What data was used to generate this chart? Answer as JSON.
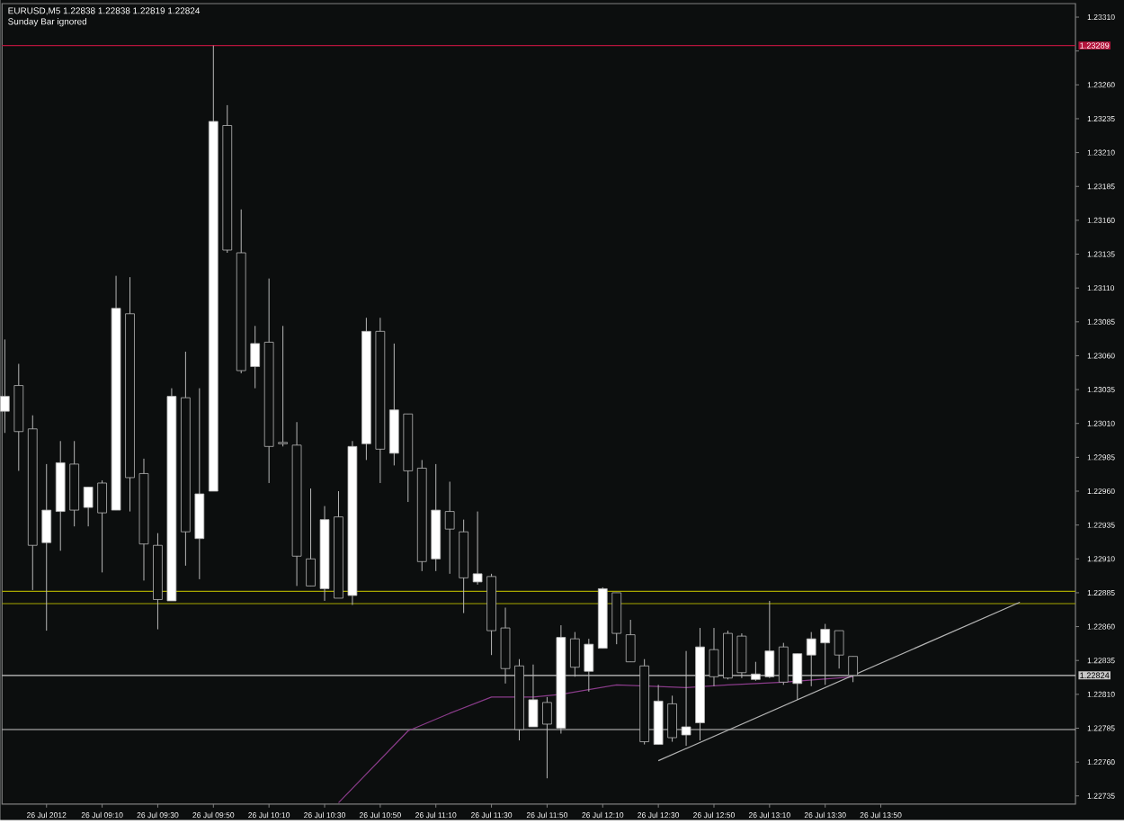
{
  "chart_data": {
    "type": "candlestick",
    "title": "EURUSD,M5 1.22838 1.22838 1.22819 1.22824",
    "subtitle": "Sunday Bar ignored",
    "x": [
      "2012-07-26T08:35",
      "2012-07-26T08:40",
      "2012-07-26T08:45",
      "2012-07-26T08:50",
      "2012-07-26T08:55",
      "2012-07-26T09:00",
      "2012-07-26T09:05",
      "2012-07-26T09:10",
      "2012-07-26T09:15",
      "2012-07-26T09:20",
      "2012-07-26T09:25",
      "2012-07-26T09:30",
      "2012-07-26T09:35",
      "2012-07-26T09:40",
      "2012-07-26T09:45",
      "2012-07-26T09:50",
      "2012-07-26T09:55",
      "2012-07-26T10:00",
      "2012-07-26T10:05",
      "2012-07-26T10:10",
      "2012-07-26T10:15",
      "2012-07-26T10:20",
      "2012-07-26T10:25",
      "2012-07-26T10:30",
      "2012-07-26T10:35",
      "2012-07-26T10:40",
      "2012-07-26T10:45",
      "2012-07-26T10:50",
      "2012-07-26T10:55",
      "2012-07-26T11:00",
      "2012-07-26T11:05",
      "2012-07-26T11:10",
      "2012-07-26T11:15",
      "2012-07-26T11:20",
      "2012-07-26T11:25",
      "2012-07-26T11:30",
      "2012-07-26T11:35",
      "2012-07-26T11:40",
      "2012-07-26T11:45",
      "2012-07-26T11:50",
      "2012-07-26T11:55",
      "2012-07-26T12:00",
      "2012-07-26T12:05",
      "2012-07-26T12:10",
      "2012-07-26T12:15",
      "2012-07-26T12:20",
      "2012-07-26T12:25",
      "2012-07-26T12:30",
      "2012-07-26T12:35",
      "2012-07-26T12:40",
      "2012-07-26T12:45",
      "2012-07-26T12:50",
      "2012-07-26T12:55",
      "2012-07-26T13:00",
      "2012-07-26T13:05",
      "2012-07-26T13:10",
      "2012-07-26T13:15",
      "2012-07-26T13:20",
      "2012-07-26T13:25",
      "2012-07-26T13:30",
      "2012-07-26T13:35",
      "2012-07-26T13:40"
    ],
    "ohlc": [
      [
        1.23019,
        1.23072,
        1.23003,
        1.2303
      ],
      [
        1.23038,
        1.23054,
        1.22975,
        1.23004
      ],
      [
        1.23006,
        1.23016,
        1.22887,
        1.2292
      ],
      [
        1.22922,
        1.2298,
        1.22857,
        1.22946
      ],
      [
        1.22945,
        1.22997,
        1.22916,
        1.22981
      ],
      [
        1.2298,
        1.22997,
        1.22934,
        1.22946
      ],
      [
        1.22948,
        1.22963,
        1.22934,
        1.22963
      ],
      [
        1.22966,
        1.22968,
        1.229,
        1.22944
      ],
      [
        1.22946,
        1.23119,
        1.22946,
        1.23095
      ],
      [
        1.23091,
        1.23118,
        1.22945,
        1.2297
      ],
      [
        1.22973,
        1.22984,
        1.22894,
        1.22921
      ],
      [
        1.2292,
        1.22929,
        1.22858,
        1.2288
      ],
      [
        1.22879,
        1.23036,
        1.22879,
        1.2303
      ],
      [
        1.23029,
        1.23063,
        1.22905,
        1.2293
      ],
      [
        1.22925,
        1.23036,
        1.22895,
        1.22958
      ],
      [
        1.2296,
        1.23289,
        1.2296,
        1.23233
      ],
      [
        1.2323,
        1.23245,
        1.23136,
        1.23138
      ],
      [
        1.23136,
        1.23168,
        1.23047,
        1.23049
      ],
      [
        1.23052,
        1.23082,
        1.23036,
        1.23069
      ],
      [
        1.2307,
        1.23117,
        1.22966,
        1.22993
      ],
      [
        1.22996,
        1.23082,
        1.22993,
        1.22995
      ],
      [
        1.22994,
        1.23011,
        1.2289,
        1.22912
      ],
      [
        1.2291,
        1.22962,
        1.2289,
        1.2289
      ],
      [
        1.22888,
        1.22949,
        1.22879,
        1.22939
      ],
      [
        1.22941,
        1.2296,
        1.22881,
        1.22881
      ],
      [
        1.22883,
        1.22997,
        1.22876,
        1.22993
      ],
      [
        1.22995,
        1.23088,
        1.22983,
        1.23078
      ],
      [
        1.23078,
        1.23088,
        1.22966,
        1.22991
      ],
      [
        1.22988,
        1.23069,
        1.22979,
        1.2302
      ],
      [
        1.23017,
        1.23017,
        1.22952,
        1.22975
      ],
      [
        1.22977,
        1.22983,
        1.22901,
        1.22908
      ],
      [
        1.2291,
        1.2298,
        1.22901,
        1.22946
      ],
      [
        1.22945,
        1.22967,
        1.22899,
        1.22932
      ],
      [
        1.2293,
        1.22939,
        1.2287,
        1.22896
      ],
      [
        1.22893,
        1.22945,
        1.22891,
        1.22899
      ],
      [
        1.22897,
        1.22899,
        1.22839,
        1.22857
      ],
      [
        1.22859,
        1.22874,
        1.22818,
        1.22829
      ],
      [
        1.22831,
        1.22836,
        1.22776,
        1.22784
      ],
      [
        1.22786,
        1.22832,
        1.22786,
        1.22806
      ],
      [
        1.22804,
        1.22808,
        1.22748,
        1.22788
      ],
      [
        1.22785,
        1.22861,
        1.22781,
        1.22852
      ],
      [
        1.22851,
        1.22856,
        1.22823,
        1.2283
      ],
      [
        1.22827,
        1.22851,
        1.22812,
        1.22847
      ],
      [
        1.22844,
        1.22889,
        1.22844,
        1.22888
      ],
      [
        1.22885,
        1.22885,
        1.22847,
        1.22855
      ],
      [
        1.22854,
        1.22865,
        1.22834,
        1.22834
      ],
      [
        1.22831,
        1.22836,
        1.22773,
        1.22775
      ],
      [
        1.22773,
        1.22817,
        1.22773,
        1.22805
      ],
      [
        1.22803,
        1.22809,
        1.22775,
        1.22778
      ],
      [
        1.2278,
        1.22842,
        1.22772,
        1.22786
      ],
      [
        1.22789,
        1.22859,
        1.22776,
        1.22845
      ],
      [
        1.22843,
        1.22859,
        1.22816,
        1.22823
      ],
      [
        1.22855,
        1.22857,
        1.22821,
        1.22822
      ],
      [
        1.22853,
        1.22855,
        1.22822,
        1.22826
      ],
      [
        1.22821,
        1.22834,
        1.2282,
        1.22825
      ],
      [
        1.22823,
        1.22879,
        1.22822,
        1.22842
      ],
      [
        1.22845,
        1.22848,
        1.22817,
        1.22819
      ],
      [
        1.22818,
        1.2284,
        1.22806,
        1.2284
      ],
      [
        1.22839,
        1.22856,
        1.22816,
        1.22851
      ],
      [
        1.22848,
        1.22862,
        1.22817,
        1.22858
      ],
      [
        1.22857,
        1.22857,
        1.22829,
        1.22839
      ],
      [
        1.22838,
        1.22838,
        1.22819,
        1.22824
      ]
    ],
    "series": [
      {
        "type": "line",
        "color": "#8a3c8a",
        "x": [
          "2012-07-26T10:35",
          "2012-07-26T11:00",
          "2012-07-26T11:15",
          "2012-07-26T11:30",
          "2012-07-26T11:45",
          "2012-07-26T11:55",
          "2012-07-26T12:15",
          "2012-07-26T12:40",
          "2012-07-26T12:55",
          "2012-07-26T13:15",
          "2012-07-26T13:40"
        ],
        "values": [
          1.2273,
          1.22783,
          1.22796,
          1.22808,
          1.22808,
          1.2281,
          1.22817,
          1.22815,
          1.22817,
          1.22819,
          1.22823
        ]
      },
      {
        "type": "line",
        "color": "#b4b4b4",
        "x": [
          "2012-07-26T12:30",
          "2012-07-26T14:40"
        ],
        "values": [
          1.22761,
          1.22878
        ]
      }
    ],
    "ref_lines": [
      {
        "axis": "y",
        "value": 1.23289,
        "label": "1.23289",
        "color": "#b4143c"
      },
      {
        "axis": "y",
        "value": 1.22886,
        "color": "#a6a600"
      },
      {
        "axis": "y",
        "value": 1.22877,
        "color": "#a6a600"
      },
      {
        "axis": "y",
        "value": 1.22824,
        "label": "1.22824",
        "color": "#c8c8c8"
      },
      {
        "axis": "y",
        "value": 1.22784,
        "color": "#c8c8c8"
      }
    ],
    "xlim": [
      "2012-07-26T08:34",
      "2012-07-26T15:00"
    ],
    "ylim": [
      1.22729,
      1.2332
    ],
    "xticks": [
      {
        "value": "2012-07-26T08:50",
        "label": "26 Jul 2012"
      },
      {
        "value": "2012-07-26T09:10",
        "label": "26 Jul 09:10"
      },
      {
        "value": "2012-07-26T09:30",
        "label": "26 Jul 09:30"
      },
      {
        "value": "2012-07-26T09:50",
        "label": "26 Jul 09:50"
      },
      {
        "value": "2012-07-26T10:10",
        "label": "26 Jul 10:10"
      },
      {
        "value": "2012-07-26T10:30",
        "label": "26 Jul 10:30"
      },
      {
        "value": "2012-07-26T10:50",
        "label": "26 Jul 10:50"
      },
      {
        "value": "2012-07-26T11:10",
        "label": "26 Jul 11:10"
      },
      {
        "value": "2012-07-26T11:30",
        "label": "26 Jul 11:30"
      },
      {
        "value": "2012-07-26T11:50",
        "label": "26 Jul 11:50"
      },
      {
        "value": "2012-07-26T12:10",
        "label": "26 Jul 12:10"
      },
      {
        "value": "2012-07-26T12:30",
        "label": "26 Jul 12:30"
      },
      {
        "value": "2012-07-26T12:50",
        "label": "26 Jul 12:50"
      },
      {
        "value": "2012-07-26T13:10",
        "label": "26 Jul 13:10"
      },
      {
        "value": "2012-07-26T13:30",
        "label": "26 Jul 13:30"
      },
      {
        "value": "2012-07-26T13:50",
        "label": "26 Jul 13:50"
      }
    ],
    "yticks": [
      {
        "value": 1.22735,
        "label": "1.22735"
      },
      {
        "value": 1.2276,
        "label": "1.22760"
      },
      {
        "value": 1.22785,
        "label": "1.22785"
      },
      {
        "value": 1.2281,
        "label": "1.22810"
      },
      {
        "value": 1.22835,
        "label": "1.22835"
      },
      {
        "value": 1.2286,
        "label": "1.22860"
      },
      {
        "value": 1.22885,
        "label": "1.22885"
      },
      {
        "value": 1.2291,
        "label": "1.22910"
      },
      {
        "value": 1.22935,
        "label": "1.22935"
      },
      {
        "value": 1.2296,
        "label": "1.22960"
      },
      {
        "value": 1.22985,
        "label": "1.22985"
      },
      {
        "value": 1.2301,
        "label": "1.23010"
      },
      {
        "value": 1.23035,
        "label": "1.23035"
      },
      {
        "value": 1.2306,
        "label": "1.23060"
      },
      {
        "value": 1.23085,
        "label": "1.23085"
      },
      {
        "value": 1.2311,
        "label": "1.23110"
      },
      {
        "value": 1.23135,
        "label": "1.23135"
      },
      {
        "value": 1.2316,
        "label": "1.23160"
      },
      {
        "value": 1.23185,
        "label": "1.23185"
      },
      {
        "value": 1.2321,
        "label": "1.23210"
      },
      {
        "value": 1.23235,
        "label": "1.23235"
      },
      {
        "value": 1.2326,
        "label": "1.23260"
      },
      {
        "value": 1.23285,
        "label": null
      },
      {
        "value": 1.2331,
        "label": "1.23310"
      }
    ]
  }
}
